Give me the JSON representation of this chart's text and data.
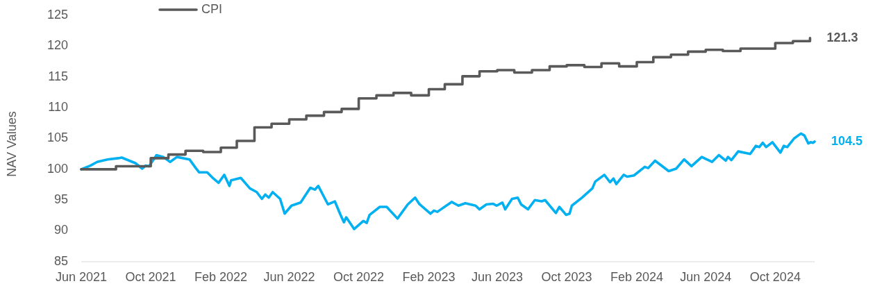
{
  "chart_data": {
    "type": "line",
    "ylabel": "NAV Values",
    "legend": "top left",
    "xlim": [
      "2021-06-01",
      "2024-12-09"
    ],
    "xticks": [
      {
        "value": "2021-06-01",
        "label": "Jun 2021"
      },
      {
        "value": "2021-10-01",
        "label": "Oct 2021"
      },
      {
        "value": "2022-02-01",
        "label": "Feb 2022"
      },
      {
        "value": "2022-06-01",
        "label": "Jun 2022"
      },
      {
        "value": "2022-10-01",
        "label": "Oct 2022"
      },
      {
        "value": "2023-02-01",
        "label": "Feb 2023"
      },
      {
        "value": "2023-06-01",
        "label": "Jun 2023"
      },
      {
        "value": "2023-10-01",
        "label": "Oct 2023"
      },
      {
        "value": "2024-02-01",
        "label": "Feb 2024"
      },
      {
        "value": "2024-06-01",
        "label": "Jun 2024"
      },
      {
        "value": "2024-10-01",
        "label": "Oct 2024"
      }
    ],
    "ylim": [
      85,
      125
    ],
    "yticks": [
      85,
      90,
      95,
      100,
      105,
      110,
      115,
      120,
      125
    ],
    "series": [
      {
        "color": "#00b0f0",
        "x": [
          "2021-06-01",
          "2021-06-17",
          "2021-06-29",
          "2021-07-17",
          "2021-08-05",
          "2021-08-11",
          "2021-09-04",
          "2021-09-16",
          "2021-09-22",
          "2021-09-28",
          "2021-10-11",
          "2021-10-23",
          "2021-11-04",
          "2021-11-16",
          "2021-12-08",
          "2021-12-19",
          "2021-12-25",
          "2022-01-08",
          "2022-01-19",
          "2022-01-28",
          "2022-02-07",
          "2022-02-16",
          "2022-02-19",
          "2022-03-08",
          "2022-03-24",
          "2022-04-05",
          "2022-04-14",
          "2022-04-20",
          "2022-04-26",
          "2022-05-03",
          "2022-05-16",
          "2022-05-24",
          "2022-06-05",
          "2022-06-21",
          "2022-07-08",
          "2022-07-16",
          "2022-07-22",
          "2022-08-08",
          "2022-08-20",
          "2022-08-30",
          "2022-09-05",
          "2022-09-09",
          "2022-09-23",
          "2022-10-09",
          "2022-10-15",
          "2022-10-20",
          "2022-11-07",
          "2022-11-19",
          "2022-12-08",
          "2022-12-26",
          "2023-01-08",
          "2023-01-15",
          "2023-02-04",
          "2023-02-10",
          "2023-02-16",
          "2023-03-13",
          "2023-03-25",
          "2023-04-06",
          "2023-04-24",
          "2023-05-01",
          "2023-05-13",
          "2023-05-25",
          "2023-05-31",
          "2023-06-10",
          "2023-06-15",
          "2023-06-27",
          "2023-07-07",
          "2023-07-13",
          "2023-07-25",
          "2023-08-06",
          "2023-08-18",
          "2023-08-24",
          "2023-09-12",
          "2023-09-18",
          "2023-09-30",
          "2023-10-06",
          "2023-10-10",
          "2023-10-28",
          "2023-11-15",
          "2023-11-20",
          "2023-12-06",
          "2023-12-16",
          "2023-12-22",
          "2023-12-27",
          "2024-01-09",
          "2024-01-15",
          "2024-01-27",
          "2024-02-15",
          "2024-02-21",
          "2024-03-04",
          "2024-03-28",
          "2024-04-10",
          "2024-04-24",
          "2024-05-07",
          "2024-05-25",
          "2024-06-12",
          "2024-06-24",
          "2024-07-06",
          "2024-07-10",
          "2024-07-16",
          "2024-07-28",
          "2024-08-18",
          "2024-08-28",
          "2024-09-03",
          "2024-09-09",
          "2024-09-15",
          "2024-09-26",
          "2024-10-10",
          "2024-10-16",
          "2024-10-22",
          "2024-11-03",
          "2024-11-15",
          "2024-11-21",
          "2024-11-28",
          "2024-12-02",
          "2024-12-06",
          "2024-12-09"
        ],
        "values": [
          100.0,
          100.6,
          101.2,
          101.6,
          101.8,
          101.9,
          101.0,
          100.1,
          100.6,
          100.5,
          102.3,
          102.0,
          101.2,
          102.0,
          101.6,
          100.2,
          99.5,
          99.5,
          98.5,
          97.8,
          99.1,
          97.3,
          98.2,
          98.6,
          96.9,
          96.3,
          95.2,
          95.9,
          95.4,
          96.3,
          95.2,
          92.8,
          94.1,
          94.6,
          97.0,
          96.7,
          97.3,
          94.3,
          94.8,
          92.6,
          91.4,
          92.2,
          90.3,
          91.6,
          91.3,
          92.6,
          93.9,
          93.9,
          92.0,
          94.3,
          95.4,
          94.4,
          92.8,
          93.3,
          93.1,
          94.7,
          94.1,
          94.5,
          94.1,
          93.5,
          94.3,
          94.4,
          94.1,
          94.6,
          93.5,
          95.2,
          95.4,
          94.3,
          93.5,
          95.0,
          94.8,
          95.0,
          92.9,
          93.9,
          92.6,
          92.8,
          94.1,
          95.4,
          96.9,
          98.0,
          99.1,
          97.9,
          98.5,
          97.6,
          99.1,
          98.8,
          99.0,
          100.4,
          100.2,
          101.4,
          99.7,
          100.1,
          101.6,
          100.5,
          102.0,
          101.2,
          102.3,
          101.4,
          102.0,
          101.5,
          102.9,
          102.5,
          103.8,
          103.6,
          104.3,
          103.6,
          104.4,
          102.7,
          103.8,
          103.6,
          105.0,
          105.8,
          105.5,
          104.2,
          104.4,
          104.3,
          104.5
        ],
        "value_labels": [
          null,
          null,
          null,
          null,
          null,
          null,
          null,
          null,
          null,
          null,
          null,
          null,
          null,
          null,
          null,
          null,
          null,
          null,
          null,
          null,
          null,
          null,
          null,
          null,
          null,
          null,
          null,
          null,
          null,
          null,
          null,
          null,
          null,
          null,
          null,
          null,
          null,
          null,
          null,
          null,
          null,
          null,
          null,
          null,
          null,
          null,
          null,
          null,
          null,
          null,
          null,
          null,
          null,
          null,
          null,
          null,
          null,
          null,
          null,
          null,
          null,
          null,
          null,
          null,
          null,
          null,
          null,
          null,
          null,
          null,
          null,
          null,
          null,
          null,
          null,
          null,
          null,
          null,
          null,
          null,
          null,
          null,
          null,
          null,
          null,
          null,
          null,
          null,
          null,
          null,
          null,
          null,
          null,
          null,
          null,
          null,
          null,
          null,
          null,
          null,
          null,
          null,
          null,
          null,
          null,
          null,
          null,
          null,
          null,
          null,
          null,
          null,
          null,
          null,
          null,
          null,
          "104.5"
        ]
      },
      {
        "name": "CPI",
        "type": "step",
        "color": "#595959",
        "x": [
          "2021-06",
          "2021-07",
          "2021-08",
          "2021-09",
          "2021-10",
          "2021-11",
          "2021-12",
          "2022-01",
          "2022-02",
          "2022-03",
          "2022-04",
          "2022-05",
          "2022-06",
          "2022-07",
          "2022-08",
          "2022-09",
          "2022-10",
          "2022-11",
          "2022-12",
          "2023-01",
          "2023-02",
          "2023-03",
          "2023-04",
          "2023-05",
          "2023-06",
          "2023-07",
          "2023-08",
          "2023-09",
          "2023-10",
          "2023-11",
          "2023-12",
          "2024-01",
          "2024-02",
          "2024-03",
          "2024-04",
          "2024-05",
          "2024-06",
          "2024-07",
          "2024-08",
          "2024-09",
          "2024-10",
          "2024-11",
          "2024-12"
        ],
        "values": [
          100.0,
          100.0,
          100.5,
          100.5,
          101.8,
          102.4,
          103.0,
          102.8,
          103.5,
          104.6,
          106.8,
          107.4,
          108.1,
          108.7,
          109.3,
          109.8,
          111.5,
          112.0,
          112.4,
          112.0,
          113.0,
          113.8,
          115.1,
          115.9,
          116.1,
          115.7,
          116.1,
          116.7,
          116.9,
          116.6,
          117.2,
          116.7,
          117.4,
          118.2,
          118.6,
          119.1,
          119.4,
          119.2,
          119.6,
          119.6,
          120.5,
          120.8,
          121.3
        ],
        "value_labels": [
          null,
          null,
          null,
          null,
          null,
          null,
          null,
          null,
          null,
          null,
          null,
          null,
          null,
          null,
          null,
          null,
          null,
          null,
          null,
          null,
          null,
          null,
          null,
          null,
          null,
          null,
          null,
          null,
          null,
          null,
          null,
          null,
          null,
          null,
          null,
          null,
          null,
          null,
          null,
          null,
          null,
          null,
          "121.3"
        ]
      }
    ]
  }
}
